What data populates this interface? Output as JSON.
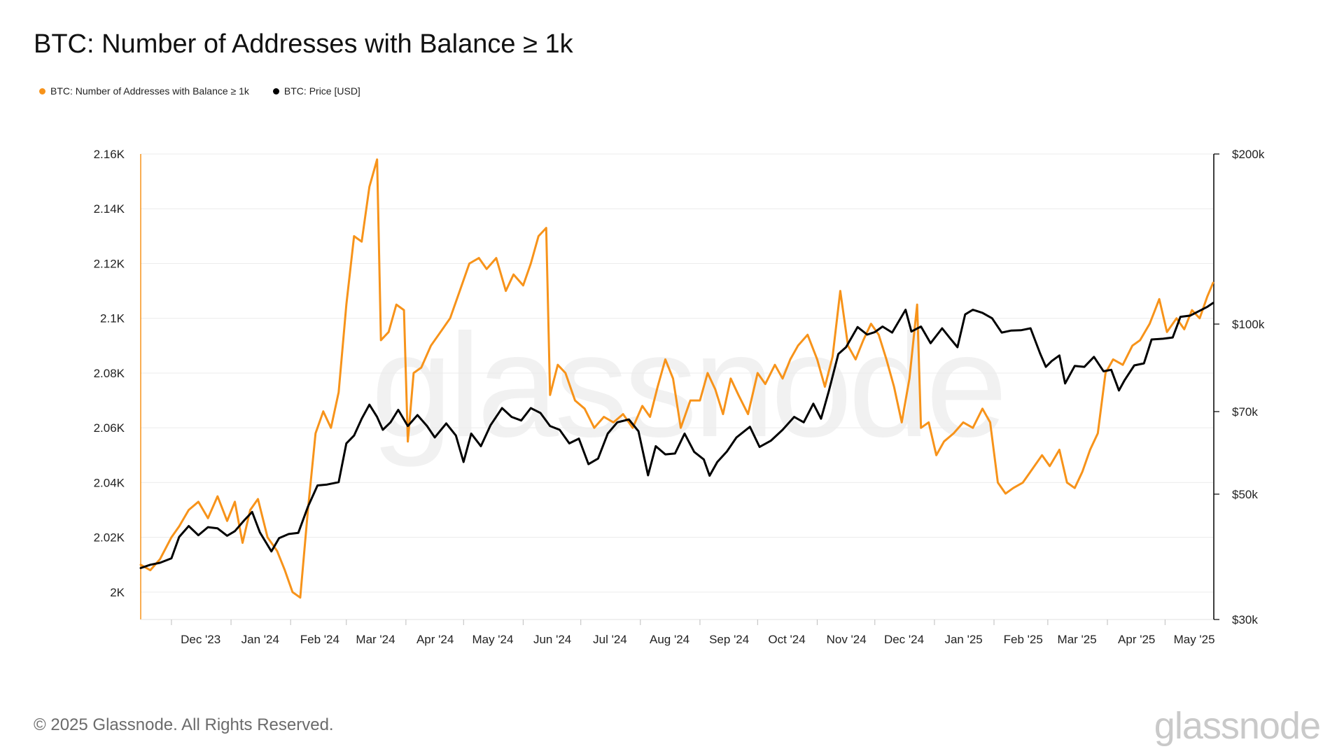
{
  "title": "BTC: Number of Addresses with Balance ≥ 1k",
  "footer": "© 2025 Glassnode. All Rights Reserved.",
  "brand": "glassnode",
  "watermark": "glassnode",
  "colors": {
    "addresses": "#f7931a",
    "price": "#000000",
    "grid": "#ececec"
  },
  "chart_data": {
    "type": "line",
    "title": "BTC: Number of Addresses with Balance ≥ 1k",
    "legend_position": "top-left",
    "grid": true,
    "x_ticks": [
      "Dec '23",
      "Jan '24",
      "Feb '24",
      "Mar '24",
      "Apr '24",
      "May '24",
      "Jun '24",
      "Jul '24",
      "Aug '24",
      "Sep '24",
      "Oct '24",
      "Nov '24",
      "Dec '24",
      "Jan '25",
      "Feb '25",
      "Mar '25",
      "Apr '25",
      "May '25"
    ],
    "x_range": [
      "2023-11-15",
      "2025-05-26"
    ],
    "left_axis": {
      "ticks": [
        "2K",
        "2.02K",
        "2.04K",
        "2.06K",
        "2.08K",
        "2.1K",
        "2.12K",
        "2.14K",
        "2.16K"
      ],
      "range": [
        1990,
        2160
      ]
    },
    "right_axis": {
      "scale": "log",
      "ticks": [
        "$30k",
        "$50k",
        "$70k",
        "$100k",
        "$200k"
      ],
      "range": [
        30000,
        200000
      ]
    },
    "series": [
      {
        "name": "BTC: Number of Addresses with Balance ≥ 1k",
        "axis": "left",
        "color": "#f7931a",
        "points": [
          [
            "2023-11-15",
            2010
          ],
          [
            "2023-11-20",
            2008
          ],
          [
            "2023-11-25",
            2012
          ],
          [
            "2023-12-01",
            2020
          ],
          [
            "2023-12-05",
            2024
          ],
          [
            "2023-12-10",
            2030
          ],
          [
            "2023-12-15",
            2033
          ],
          [
            "2023-12-20",
            2027
          ],
          [
            "2023-12-25",
            2035
          ],
          [
            "2023-12-30",
            2026
          ],
          [
            "2024-01-03",
            2033
          ],
          [
            "2024-01-07",
            2018
          ],
          [
            "2024-01-11",
            2030
          ],
          [
            "2024-01-15",
            2034
          ],
          [
            "2024-01-20",
            2020
          ],
          [
            "2024-01-25",
            2015
          ],
          [
            "2024-01-29",
            2008
          ],
          [
            "2024-02-02",
            2000
          ],
          [
            "2024-02-06",
            1998
          ],
          [
            "2024-02-10",
            2030
          ],
          [
            "2024-02-14",
            2058
          ],
          [
            "2024-02-18",
            2066
          ],
          [
            "2024-02-22",
            2060
          ],
          [
            "2024-02-26",
            2073
          ],
          [
            "2024-03-01",
            2105
          ],
          [
            "2024-03-05",
            2130
          ],
          [
            "2024-03-09",
            2128
          ],
          [
            "2024-03-13",
            2148
          ],
          [
            "2024-03-17",
            2158
          ],
          [
            "2024-03-19",
            2092
          ],
          [
            "2024-03-23",
            2095
          ],
          [
            "2024-03-27",
            2105
          ],
          [
            "2024-03-31",
            2103
          ],
          [
            "2024-04-02",
            2055
          ],
          [
            "2024-04-05",
            2080
          ],
          [
            "2024-04-09",
            2082
          ],
          [
            "2024-04-14",
            2090
          ],
          [
            "2024-04-19",
            2095
          ],
          [
            "2024-04-24",
            2100
          ],
          [
            "2024-04-29",
            2110
          ],
          [
            "2024-05-04",
            2120
          ],
          [
            "2024-05-09",
            2122
          ],
          [
            "2024-05-13",
            2118
          ],
          [
            "2024-05-18",
            2122
          ],
          [
            "2024-05-23",
            2110
          ],
          [
            "2024-05-27",
            2116
          ],
          [
            "2024-06-01",
            2112
          ],
          [
            "2024-06-05",
            2120
          ],
          [
            "2024-06-09",
            2130
          ],
          [
            "2024-06-13",
            2133
          ],
          [
            "2024-06-15",
            2072
          ],
          [
            "2024-06-19",
            2083
          ],
          [
            "2024-06-23",
            2080
          ],
          [
            "2024-06-28",
            2070
          ],
          [
            "2024-07-03",
            2067
          ],
          [
            "2024-07-08",
            2060
          ],
          [
            "2024-07-13",
            2064
          ],
          [
            "2024-07-18",
            2062
          ],
          [
            "2024-07-23",
            2065
          ],
          [
            "2024-07-28",
            2060
          ],
          [
            "2024-08-02",
            2068
          ],
          [
            "2024-08-06",
            2064
          ],
          [
            "2024-08-10",
            2075
          ],
          [
            "2024-08-14",
            2085
          ],
          [
            "2024-08-18",
            2078
          ],
          [
            "2024-08-22",
            2060
          ],
          [
            "2024-08-27",
            2070
          ],
          [
            "2024-09-01",
            2070
          ],
          [
            "2024-09-05",
            2080
          ],
          [
            "2024-09-09",
            2074
          ],
          [
            "2024-09-13",
            2065
          ],
          [
            "2024-09-17",
            2078
          ],
          [
            "2024-09-21",
            2072
          ],
          [
            "2024-09-26",
            2065
          ],
          [
            "2024-10-01",
            2080
          ],
          [
            "2024-10-05",
            2076
          ],
          [
            "2024-10-10",
            2083
          ],
          [
            "2024-10-14",
            2078
          ],
          [
            "2024-10-18",
            2085
          ],
          [
            "2024-10-22",
            2090
          ],
          [
            "2024-10-27",
            2094
          ],
          [
            "2024-11-01",
            2085
          ],
          [
            "2024-11-05",
            2075
          ],
          [
            "2024-11-09",
            2086
          ],
          [
            "2024-11-13",
            2110
          ],
          [
            "2024-11-17",
            2090
          ],
          [
            "2024-11-21",
            2085
          ],
          [
            "2024-11-25",
            2092
          ],
          [
            "2024-11-29",
            2098
          ],
          [
            "2024-12-03",
            2094
          ],
          [
            "2024-12-07",
            2085
          ],
          [
            "2024-12-11",
            2075
          ],
          [
            "2024-12-15",
            2062
          ],
          [
            "2024-12-19",
            2078
          ],
          [
            "2024-12-23",
            2105
          ],
          [
            "2024-12-25",
            2060
          ],
          [
            "2024-12-29",
            2062
          ],
          [
            "2025-01-02",
            2050
          ],
          [
            "2025-01-06",
            2055
          ],
          [
            "2025-01-11",
            2058
          ],
          [
            "2025-01-16",
            2062
          ],
          [
            "2025-01-21",
            2060
          ],
          [
            "2025-01-26",
            2067
          ],
          [
            "2025-01-30",
            2062
          ],
          [
            "2025-02-03",
            2040
          ],
          [
            "2025-02-07",
            2036
          ],
          [
            "2025-02-11",
            2038
          ],
          [
            "2025-02-16",
            2040
          ],
          [
            "2025-02-21",
            2045
          ],
          [
            "2025-02-26",
            2050
          ],
          [
            "2025-03-02",
            2046
          ],
          [
            "2025-03-07",
            2052
          ],
          [
            "2025-03-11",
            2040
          ],
          [
            "2025-03-15",
            2038
          ],
          [
            "2025-03-19",
            2044
          ],
          [
            "2025-03-23",
            2052
          ],
          [
            "2025-03-27",
            2058
          ],
          [
            "2025-03-31",
            2080
          ],
          [
            "2025-04-04",
            2085
          ],
          [
            "2025-04-09",
            2083
          ],
          [
            "2025-04-14",
            2090
          ],
          [
            "2025-04-18",
            2092
          ],
          [
            "2025-04-23",
            2098
          ],
          [
            "2025-04-28",
            2107
          ],
          [
            "2025-05-02",
            2095
          ],
          [
            "2025-05-07",
            2100
          ],
          [
            "2025-05-11",
            2096
          ],
          [
            "2025-05-15",
            2103
          ],
          [
            "2025-05-19",
            2100
          ],
          [
            "2025-05-23",
            2108
          ],
          [
            "2025-05-26",
            2113
          ]
        ]
      },
      {
        "name": "BTC: Price [USD]",
        "axis": "right",
        "color": "#000000",
        "points": [
          [
            "2023-11-15",
            37000
          ],
          [
            "2023-11-20",
            37500
          ],
          [
            "2023-11-25",
            37800
          ],
          [
            "2023-12-01",
            38500
          ],
          [
            "2023-12-05",
            42000
          ],
          [
            "2023-12-10",
            43900
          ],
          [
            "2023-12-15",
            42300
          ],
          [
            "2023-12-20",
            43700
          ],
          [
            "2023-12-25",
            43500
          ],
          [
            "2023-12-30",
            42200
          ],
          [
            "2024-01-03",
            43000
          ],
          [
            "2024-01-08",
            45000
          ],
          [
            "2024-01-12",
            46500
          ],
          [
            "2024-01-16",
            42800
          ],
          [
            "2024-01-22",
            39600
          ],
          [
            "2024-01-26",
            41800
          ],
          [
            "2024-01-31",
            42500
          ],
          [
            "2024-02-05",
            42700
          ],
          [
            "2024-02-10",
            47500
          ],
          [
            "2024-02-15",
            51800
          ],
          [
            "2024-02-20",
            52000
          ],
          [
            "2024-02-26",
            52500
          ],
          [
            "2024-03-01",
            61500
          ],
          [
            "2024-03-05",
            63500
          ],
          [
            "2024-03-09",
            68000
          ],
          [
            "2024-03-13",
            72000
          ],
          [
            "2024-03-17",
            68500
          ],
          [
            "2024-03-20",
            65000
          ],
          [
            "2024-03-24",
            67000
          ],
          [
            "2024-03-28",
            70500
          ],
          [
            "2024-04-02",
            66000
          ],
          [
            "2024-04-07",
            69000
          ],
          [
            "2024-04-12",
            66000
          ],
          [
            "2024-04-16",
            63000
          ],
          [
            "2024-04-22",
            66700
          ],
          [
            "2024-04-27",
            63500
          ],
          [
            "2024-05-01",
            57000
          ],
          [
            "2024-05-05",
            64000
          ],
          [
            "2024-05-10",
            60800
          ],
          [
            "2024-05-15",
            66200
          ],
          [
            "2024-05-21",
            71000
          ],
          [
            "2024-05-26",
            68500
          ],
          [
            "2024-05-31",
            67500
          ],
          [
            "2024-06-05",
            71000
          ],
          [
            "2024-06-10",
            69600
          ],
          [
            "2024-06-15",
            66000
          ],
          [
            "2024-06-20",
            65000
          ],
          [
            "2024-06-25",
            61500
          ],
          [
            "2024-06-30",
            62700
          ],
          [
            "2024-07-05",
            56500
          ],
          [
            "2024-07-10",
            57800
          ],
          [
            "2024-07-15",
            64000
          ],
          [
            "2024-07-20",
            67000
          ],
          [
            "2024-07-26",
            67800
          ],
          [
            "2024-07-31",
            64600
          ],
          [
            "2024-08-05",
            54000
          ],
          [
            "2024-08-09",
            60800
          ],
          [
            "2024-08-14",
            58800
          ],
          [
            "2024-08-19",
            59000
          ],
          [
            "2024-08-24",
            64000
          ],
          [
            "2024-08-29",
            59400
          ],
          [
            "2024-09-03",
            57600
          ],
          [
            "2024-09-06",
            53900
          ],
          [
            "2024-09-10",
            57000
          ],
          [
            "2024-09-15",
            59500
          ],
          [
            "2024-09-20",
            63000
          ],
          [
            "2024-09-27",
            65800
          ],
          [
            "2024-10-02",
            60600
          ],
          [
            "2024-10-08",
            62200
          ],
          [
            "2024-10-14",
            65000
          ],
          [
            "2024-10-20",
            68500
          ],
          [
            "2024-10-25",
            67000
          ],
          [
            "2024-10-30",
            72300
          ],
          [
            "2024-11-03",
            68000
          ],
          [
            "2024-11-07",
            76000
          ],
          [
            "2024-11-12",
            88500
          ],
          [
            "2024-11-16",
            91000
          ],
          [
            "2024-11-22",
            98800
          ],
          [
            "2024-11-27",
            95800
          ],
          [
            "2024-12-01",
            96800
          ],
          [
            "2024-12-05",
            99000
          ],
          [
            "2024-12-10",
            96600
          ],
          [
            "2024-12-17",
            106000
          ],
          [
            "2024-12-20",
            97000
          ],
          [
            "2024-12-25",
            99000
          ],
          [
            "2024-12-30",
            92500
          ],
          [
            "2025-01-05",
            98300
          ],
          [
            "2025-01-09",
            94500
          ],
          [
            "2025-01-13",
            91000
          ],
          [
            "2025-01-17",
            104000
          ],
          [
            "2025-01-21",
            106000
          ],
          [
            "2025-01-26",
            104700
          ],
          [
            "2025-01-31",
            102400
          ],
          [
            "2025-02-05",
            96600
          ],
          [
            "2025-02-10",
            97400
          ],
          [
            "2025-02-15",
            97500
          ],
          [
            "2025-02-20",
            98300
          ],
          [
            "2025-02-25",
            88700
          ],
          [
            "2025-02-28",
            84000
          ],
          [
            "2025-03-03",
            86000
          ],
          [
            "2025-03-07",
            88000
          ],
          [
            "2025-03-10",
            78500
          ],
          [
            "2025-03-15",
            84300
          ],
          [
            "2025-03-20",
            84000
          ],
          [
            "2025-03-25",
            87500
          ],
          [
            "2025-03-30",
            82500
          ],
          [
            "2025-04-03",
            83000
          ],
          [
            "2025-04-07",
            76300
          ],
          [
            "2025-04-10",
            79600
          ],
          [
            "2025-04-15",
            84500
          ],
          [
            "2025-04-20",
            85200
          ],
          [
            "2025-04-24",
            93900
          ],
          [
            "2025-04-30",
            94200
          ],
          [
            "2025-05-05",
            94700
          ],
          [
            "2025-05-09",
            103000
          ],
          [
            "2025-05-14",
            103500
          ],
          [
            "2025-05-19",
            105600
          ],
          [
            "2025-05-23",
            107300
          ],
          [
            "2025-05-26",
            109000
          ]
        ]
      }
    ]
  }
}
